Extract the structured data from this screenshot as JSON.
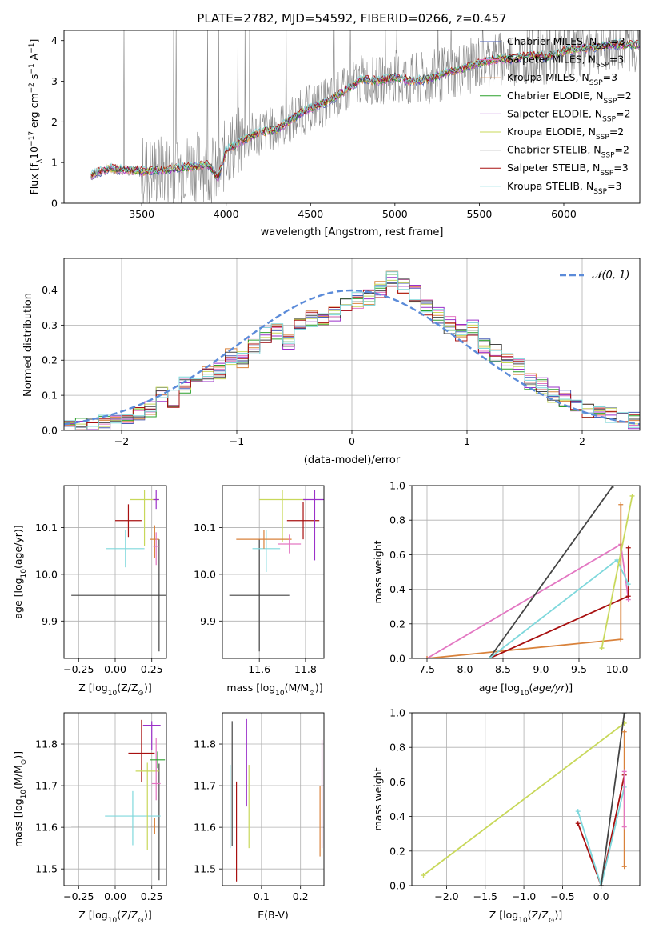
{
  "figure_title": "PLATE=2782, MJD=54592, FIBERID=0266, z=0.457",
  "colors": {
    "chabrier_miles": "#4b5fb8",
    "salpeter_miles": "#e377c2",
    "kroupa_miles": "#d9823b",
    "chabrier_elodie": "#2ca02c",
    "salpeter_elodie": "#9b30c9",
    "kroupa_elodie": "#c8d85a",
    "chabrier_stelib": "#444444",
    "salpeter_stelib": "#a81010",
    "kroupa_stelib": "#7fd8dc",
    "gaussian": "#5b8bd9",
    "observed": "#888888",
    "grid": "#b0b0b0"
  },
  "legend_models": [
    {
      "text": "Chabrier MILES, N",
      "sub": "SSP",
      "suffix": "=3",
      "color": "#4b5fb8"
    },
    {
      "text": "Salpeter MILES, N",
      "sub": "SSP",
      "suffix": "=3",
      "color": "#e377c2"
    },
    {
      "text": "Kroupa MILES, N",
      "sub": "SSP",
      "suffix": "=3",
      "color": "#d9823b"
    },
    {
      "text": "Chabrier ELODIE, N",
      "sub": "SSP",
      "suffix": "=2",
      "color": "#2ca02c"
    },
    {
      "text": "Salpeter ELODIE, N",
      "sub": "SSP",
      "suffix": "=2",
      "color": "#9b30c9"
    },
    {
      "text": "Kroupa ELODIE, N",
      "sub": "SSP",
      "suffix": "=2",
      "color": "#c8d85a"
    },
    {
      "text": "Chabrier STELIB, N",
      "sub": "SSP",
      "suffix": "=2",
      "color": "#444444"
    },
    {
      "text": "Salpeter STELIB, N",
      "sub": "SSP",
      "suffix": "=3",
      "color": "#a81010"
    },
    {
      "text": "Kroupa STELIB, N",
      "sub": "SSP",
      "suffix": "=3",
      "color": "#7fd8dc"
    }
  ],
  "chart_data": [
    {
      "id": "spectrum",
      "type": "line",
      "xlabel": "wavelength [Angstrom, rest frame]",
      "ylabel": "Flux [f",
      "ylabel_sub": "λ",
      "ylabel_rest": "10",
      "ylabel_sup1": "−17",
      "ylabel_rest2": " erg cm",
      "ylabel_sup2": "−2",
      "ylabel_rest3": " s",
      "ylabel_sup3": "−1",
      "ylabel_rest4": " A",
      "ylabel_sup4": "−1",
      "ylabel_rest5": "]",
      "xlim": [
        3040,
        6450
      ],
      "ylim": [
        0,
        4.25
      ],
      "xticks": [
        3500,
        4000,
        4500,
        5000,
        5500,
        6000
      ],
      "yticks": [
        0,
        1,
        2,
        3,
        4
      ],
      "model_continuum": [
        [
          3200,
          0.68
        ],
        [
          3300,
          0.85
        ],
        [
          3400,
          0.82
        ],
        [
          3500,
          0.78
        ],
        [
          3600,
          0.8
        ],
        [
          3700,
          0.85
        ],
        [
          3800,
          0.9
        ],
        [
          3900,
          0.95
        ],
        [
          3950,
          0.6
        ],
        [
          4000,
          1.3
        ],
        [
          4100,
          1.55
        ],
        [
          4200,
          1.75
        ],
        [
          4300,
          1.8
        ],
        [
          4400,
          2.1
        ],
        [
          4500,
          2.35
        ],
        [
          4600,
          2.5
        ],
        [
          4700,
          2.75
        ],
        [
          4800,
          3.05
        ],
        [
          4900,
          3.0
        ],
        [
          5000,
          3.1
        ],
        [
          5100,
          3.0
        ],
        [
          5200,
          3.05
        ],
        [
          5300,
          3.2
        ],
        [
          5400,
          3.3
        ],
        [
          5500,
          3.45
        ],
        [
          5600,
          3.55
        ],
        [
          5700,
          3.55
        ],
        [
          5800,
          3.65
        ],
        [
          5900,
          3.6
        ],
        [
          6000,
          3.75
        ],
        [
          6100,
          3.8
        ],
        [
          6200,
          3.85
        ],
        [
          6300,
          3.9
        ]
      ]
    },
    {
      "id": "residuals",
      "type": "histogram",
      "xlabel": "(data-model)/error",
      "ylabel": "Normed distribution",
      "xlim": [
        -2.5,
        2.5
      ],
      "ylim": [
        0,
        0.49
      ],
      "xticks": [
        -2,
        -1,
        0,
        1,
        2
      ],
      "xticklabels": [
        "−2",
        "−1",
        "0",
        "1",
        "2"
      ],
      "yticks": [
        0,
        0.1,
        0.2,
        0.3,
        0.4
      ],
      "yticklabels": [
        "0.0",
        "0.1",
        "0.2",
        "0.3",
        "0.4"
      ],
      "legend": "𝒩(0, 1)",
      "bin_edges": [
        -2.5,
        2.5
      ],
      "bin_count": 50,
      "series_values": [
        0.028,
        0.01,
        0.008,
        0.02,
        0.033,
        0.042,
        0.05,
        0.06,
        0.1,
        0.09,
        0.13,
        0.15,
        0.16,
        0.17,
        0.21,
        0.2,
        0.24,
        0.27,
        0.28,
        0.25,
        0.3,
        0.32,
        0.31,
        0.33,
        0.36,
        0.37,
        0.38,
        0.4,
        0.43,
        0.41,
        0.39,
        0.35,
        0.33,
        0.3,
        0.28,
        0.29,
        0.24,
        0.22,
        0.2,
        0.18,
        0.14,
        0.13,
        0.1,
        0.09,
        0.08,
        0.06,
        0.05,
        0.04,
        0.035,
        0.03
      ]
    },
    {
      "id": "age_vs_Z",
      "type": "scatter",
      "xlabel": "Z [log",
      "xlabel_sub": "10",
      "xlabel_rest": "(Z/Z",
      "xlabel_sub2": "⊙",
      "xlabel_rest2": ")]",
      "ylabel": "age  [log",
      "ylabel_sub": "10",
      "ylabel_rest": "(age/yr)]",
      "xlim": [
        -0.35,
        0.35
      ],
      "ylim": [
        9.82,
        10.19
      ],
      "xticks": [
        -0.25,
        0.0,
        0.25
      ],
      "xticklabels": [
        "−0.25",
        "0.00",
        "0.25"
      ],
      "yticks": [
        9.9,
        10.0,
        10.1
      ],
      "yticklabels": [
        "9.9",
        "10.0",
        "10.1"
      ],
      "points": [
        {
          "x": 0.3,
          "y": 9.955,
          "xerr": 0.6,
          "yerr_up": 0.12,
          "yerr_lo": 0.12,
          "color": "#444444"
        },
        {
          "x": 0.09,
          "y": 10.115,
          "xerr": 0.09,
          "yerr_up": 0.035,
          "yerr_lo": 0.035,
          "color": "#a81010"
        },
        {
          "x": 0.07,
          "y": 10.055,
          "xerr": 0.13,
          "yerr_up": 0.04,
          "yerr_lo": 0.04,
          "color": "#7fd8dc"
        },
        {
          "x": 0.2,
          "y": 10.16,
          "xerr": 0.1,
          "yerr_up": 0.02,
          "yerr_lo": 0.1,
          "color": "#c8d85a"
        },
        {
          "x": 0.27,
          "y": 10.075,
          "xerr": 0.03,
          "yerr_up": 0.03,
          "yerr_lo": 0.04,
          "color": "#d9823b"
        },
        {
          "x": 0.28,
          "y": 10.06,
          "xerr": 0.02,
          "yerr_up": 0.03,
          "yerr_lo": 0.04,
          "color": "#e377c2"
        },
        {
          "x": 0.28,
          "y": 10.16,
          "xerr": 0.02,
          "yerr_up": 0.02,
          "yerr_lo": 0.02,
          "color": "#9b30c9"
        }
      ]
    },
    {
      "id": "age_vs_mass",
      "type": "scatter",
      "xlabel": "mass [log",
      "xlabel_sub": "10",
      "xlabel_rest": "(M/M",
      "xlabel_sub2": "⊙",
      "xlabel_rest2": ")]",
      "xlim": [
        11.44,
        11.88
      ],
      "ylim": [
        9.82,
        10.19
      ],
      "xticks": [
        11.6,
        11.8
      ],
      "xticklabels": [
        "11.6",
        "11.8"
      ],
      "yticks": [
        9.9,
        10.0,
        10.1
      ],
      "yticklabels": [
        "9.9",
        "10.0",
        "10.1"
      ],
      "points": [
        {
          "x": 11.6,
          "y": 9.955,
          "xerr": 0.13,
          "yerr_up": 0.12,
          "yerr_lo": 0.12,
          "color": "#444444"
        },
        {
          "x": 11.79,
          "y": 10.115,
          "xerr": 0.07,
          "yerr_up": 0.04,
          "yerr_lo": 0.04,
          "color": "#a81010"
        },
        {
          "x": 11.63,
          "y": 10.055,
          "xerr": 0.06,
          "yerr_up": 0.04,
          "yerr_lo": 0.05,
          "color": "#7fd8dc"
        },
        {
          "x": 11.7,
          "y": 10.16,
          "xerr": 0.1,
          "yerr_up": 0.02,
          "yerr_lo": 0.09,
          "color": "#c8d85a"
        },
        {
          "x": 11.62,
          "y": 10.075,
          "xerr": 0.12,
          "yerr_up": 0.02,
          "yerr_lo": 0.02,
          "color": "#d9823b"
        },
        {
          "x": 11.73,
          "y": 10.065,
          "xerr": 0.05,
          "yerr_up": 0.02,
          "yerr_lo": 0.02,
          "color": "#e377c2"
        },
        {
          "x": 11.84,
          "y": 10.16,
          "xerr": 0.05,
          "yerr_up": 0.02,
          "yerr_lo": 0.13,
          "color": "#9b30c9"
        }
      ]
    },
    {
      "id": "mass_weight_vs_age",
      "type": "line",
      "xlabel": "age  [log",
      "xlabel_sub": "10",
      "xlabel_rest": "(age/yr)]",
      "ylabel": "mass weight",
      "xlim": [
        7.3,
        10.3
      ],
      "ylim": [
        0,
        1
      ],
      "xticks": [
        7.5,
        8.0,
        8.5,
        9.0,
        9.5,
        10.0
      ],
      "xticklabels": [
        "7.5",
        "8.0",
        "8.5",
        "9.0",
        "9.5",
        "10.0"
      ],
      "yticks": [
        0,
        0.2,
        0.4,
        0.6,
        0.8,
        1.0
      ],
      "yticklabels": [
        "0.0",
        "0.2",
        "0.4",
        "0.6",
        "0.8",
        "1.0"
      ],
      "series": [
        {
          "color": "#e377c2",
          "points": [
            [
              7.5,
              0.0
            ],
            [
              10.05,
              0.66
            ],
            [
              10.15,
              0.34
            ]
          ]
        },
        {
          "color": "#d9823b",
          "points": [
            [
              7.5,
              0.0
            ],
            [
              10.05,
              0.11
            ],
            [
              10.05,
              0.89
            ]
          ]
        },
        {
          "color": "#444444",
          "points": [
            [
              8.32,
              0.0
            ],
            [
              9.95,
              1.0
            ]
          ]
        },
        {
          "color": "#a81010",
          "points": [
            [
              8.32,
              0.0
            ],
            [
              10.15,
              0.36
            ],
            [
              10.15,
              0.64
            ]
          ]
        },
        {
          "color": "#7fd8dc",
          "points": [
            [
              8.32,
              0.0
            ],
            [
              10.0,
              0.57
            ],
            [
              10.15,
              0.43
            ]
          ]
        },
        {
          "color": "#c8d85a",
          "points": [
            [
              9.8,
              0.06
            ],
            [
              10.2,
              0.94
            ]
          ]
        }
      ]
    },
    {
      "id": "mass_vs_Z",
      "type": "scatter",
      "xlabel": "Z [log",
      "xlabel_sub": "10",
      "xlabel_rest": "(Z/Z",
      "xlabel_sub2": "⊙",
      "xlabel_rest2": ")]",
      "ylabel": "mass [log",
      "ylabel_sub": "10",
      "ylabel_rest": "(M/M",
      "ylabel_sub2": "⊙",
      "ylabel_rest2": ")]",
      "xlim": [
        -0.35,
        0.35
      ],
      "ylim": [
        11.46,
        11.875
      ],
      "xticks": [
        -0.25,
        0.0,
        0.25
      ],
      "xticklabels": [
        "−0.25",
        "0.00",
        "0.25"
      ],
      "yticks": [
        11.5,
        11.6,
        11.7,
        11.8
      ],
      "yticklabels": [
        "11.5",
        "11.6",
        "11.7",
        "11.8"
      ],
      "points": [
        {
          "x": 0.3,
          "y": 11.603,
          "xerr": 0.6,
          "yerr_up": 0.15,
          "yerr_lo": 0.13,
          "color": "#444444"
        },
        {
          "x": 0.18,
          "y": 11.778,
          "xerr": 0.09,
          "yerr_up": 0.08,
          "yerr_lo": 0.07,
          "color": "#a81010"
        },
        {
          "x": 0.12,
          "y": 11.627,
          "xerr": 0.19,
          "yerr_up": 0.06,
          "yerr_lo": 0.07,
          "color": "#7fd8dc"
        },
        {
          "x": 0.22,
          "y": 11.735,
          "xerr": 0.08,
          "yerr_up": 0.02,
          "yerr_lo": 0.19,
          "color": "#c8d85a"
        },
        {
          "x": 0.27,
          "y": 11.603,
          "xerr": 0.03,
          "yerr_up": 0.02,
          "yerr_lo": 0.02,
          "color": "#d9823b"
        },
        {
          "x": 0.28,
          "y": 11.705,
          "xerr": 0.03,
          "yerr_up": 0.11,
          "yerr_lo": 0.04,
          "color": "#e377c2"
        },
        {
          "x": 0.25,
          "y": 11.845,
          "xerr": 0.06,
          "yerr_up": 0.01,
          "yerr_lo": 0.06,
          "color": "#9b30c9"
        },
        {
          "x": 0.29,
          "y": 11.762,
          "xerr": 0.05,
          "yerr_up": 0.02,
          "yerr_lo": 0.02,
          "color": "#2ca02c"
        }
      ]
    },
    {
      "id": "mass_vs_ebv",
      "type": "scatter",
      "xlabel": "E(B-V)",
      "xlim": [
        0.0,
        0.26
      ],
      "ylim": [
        11.46,
        11.875
      ],
      "xticks": [
        0.1,
        0.2
      ],
      "xticklabels": [
        "0.1",
        "0.2"
      ],
      "yticks": [
        11.5,
        11.6,
        11.7,
        11.8
      ],
      "yticklabels": [
        "11.5",
        "11.6",
        "11.7",
        "11.8"
      ],
      "points": [
        {
          "x": 0.025,
          "y": 11.695,
          "yerr_up": 0.16,
          "yerr_lo": 0.14,
          "color": "#444444"
        },
        {
          "x": 0.036,
          "y": 11.62,
          "yerr_up": 0.09,
          "yerr_lo": 0.15,
          "color": "#a81010"
        },
        {
          "x": 0.02,
          "y": 11.64,
          "yerr_up": 0.11,
          "yerr_lo": 0.09,
          "color": "#7fd8dc"
        },
        {
          "x": 0.068,
          "y": 11.68,
          "yerr_up": 0.07,
          "yerr_lo": 0.13,
          "color": "#c8d85a"
        },
        {
          "x": 0.062,
          "y": 11.76,
          "yerr_up": 0.1,
          "yerr_lo": 0.11,
          "color": "#9b30c9"
        },
        {
          "x": 0.25,
          "y": 11.61,
          "yerr_up": 0.09,
          "yerr_lo": 0.08,
          "color": "#d9823b"
        },
        {
          "x": 0.255,
          "y": 11.66,
          "yerr_up": 0.15,
          "yerr_lo": 0.11,
          "color": "#e377c2"
        }
      ]
    },
    {
      "id": "mass_weight_vs_Z",
      "type": "line",
      "xlabel": "Z [log",
      "xlabel_sub": "10",
      "xlabel_rest": "(Z/Z",
      "xlabel_sub2": "⊙",
      "xlabel_rest2": ")]",
      "ylabel": "mass weight",
      "xlim": [
        -2.45,
        0.5
      ],
      "ylim": [
        0,
        1
      ],
      "xticks": [
        -2.0,
        -1.5,
        -1.0,
        -0.5,
        0.0
      ],
      "xticklabels": [
        "−2.0",
        "−1.5",
        "−1.0",
        "−0.5",
        "0.0"
      ],
      "yticks": [
        0,
        0.2,
        0.4,
        0.6,
        0.8,
        1.0
      ],
      "yticklabels": [
        "0.0",
        "0.2",
        "0.4",
        "0.6",
        "0.8",
        "1.0"
      ],
      "series": [
        {
          "color": "#c8d85a",
          "points": [
            [
              -2.3,
              0.06
            ],
            [
              0.3,
              0.94
            ]
          ]
        },
        {
          "color": "#a81010",
          "points": [
            [
              -0.3,
              0.36
            ],
            [
              0.0,
              0.0
            ],
            [
              0.3,
              0.64
            ]
          ]
        },
        {
          "color": "#7fd8dc",
          "points": [
            [
              -0.3,
              0.43
            ],
            [
              0.0,
              0.0
            ],
            [
              0.3,
              0.57
            ]
          ]
        },
        {
          "color": "#444444",
          "points": [
            [
              0.0,
              0.0
            ],
            [
              0.3,
              1.0
            ]
          ]
        },
        {
          "color": "#d9823b",
          "points": [
            [
              0.3,
              0.11
            ],
            [
              0.3,
              0.89
            ]
          ]
        },
        {
          "color": "#e377c2",
          "points": [
            [
              0.3,
              0.34
            ],
            [
              0.3,
              0.66
            ]
          ]
        }
      ]
    }
  ]
}
